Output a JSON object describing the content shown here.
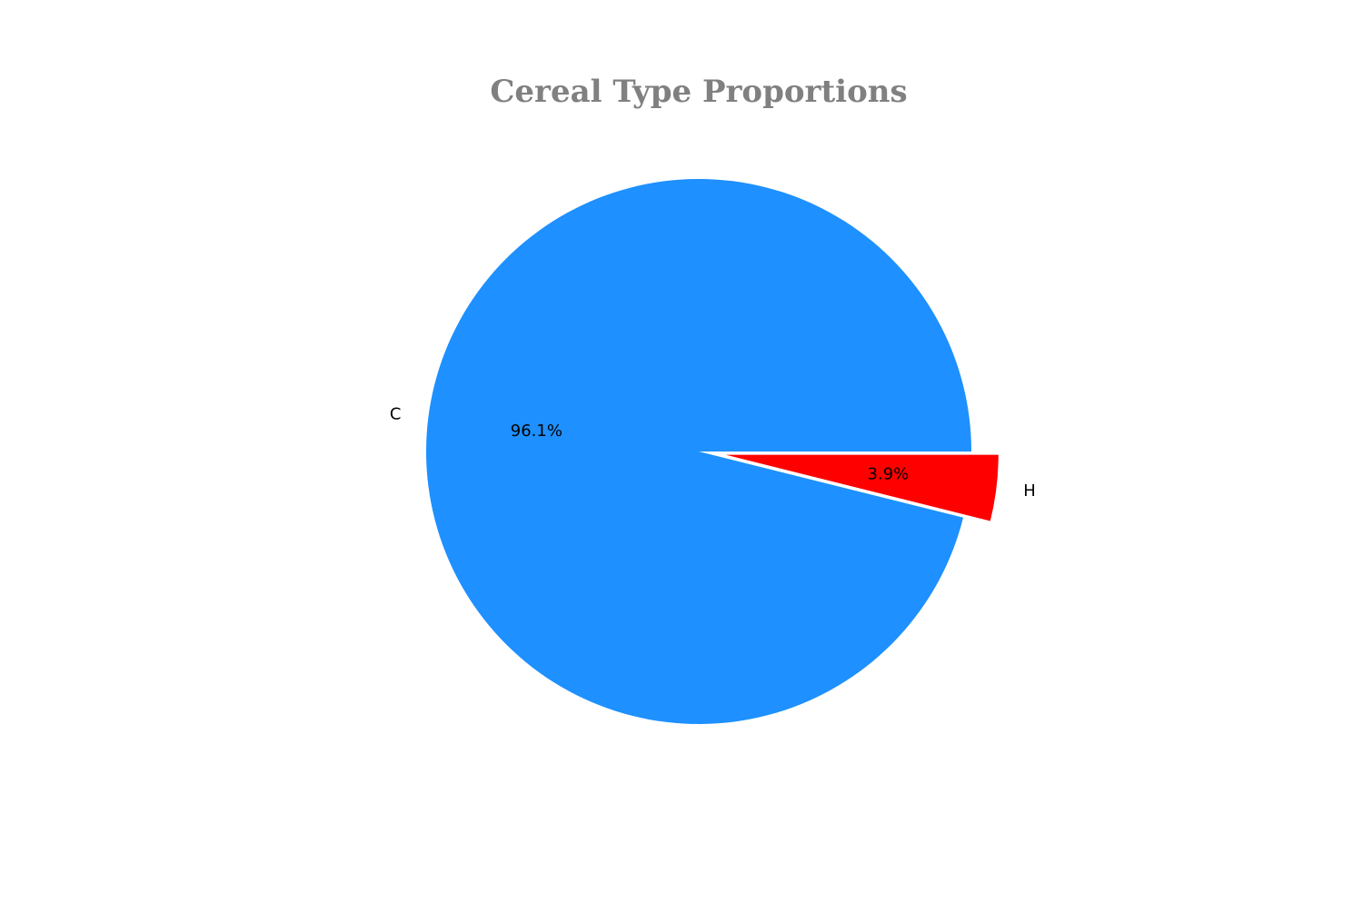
{
  "chart_data": {
    "type": "pie",
    "title": "Cereal Type Proportions",
    "categories": [
      "C",
      "H"
    ],
    "values": [
      96.1,
      3.9
    ],
    "value_labels": [
      "96.1%",
      "3.9%"
    ],
    "colors": [
      "#1E90FF",
      "#FF0000"
    ],
    "explode": [
      0,
      0.1
    ],
    "start_angle_deg": 0,
    "direction": "counterclockwise",
    "legend": "none"
  }
}
